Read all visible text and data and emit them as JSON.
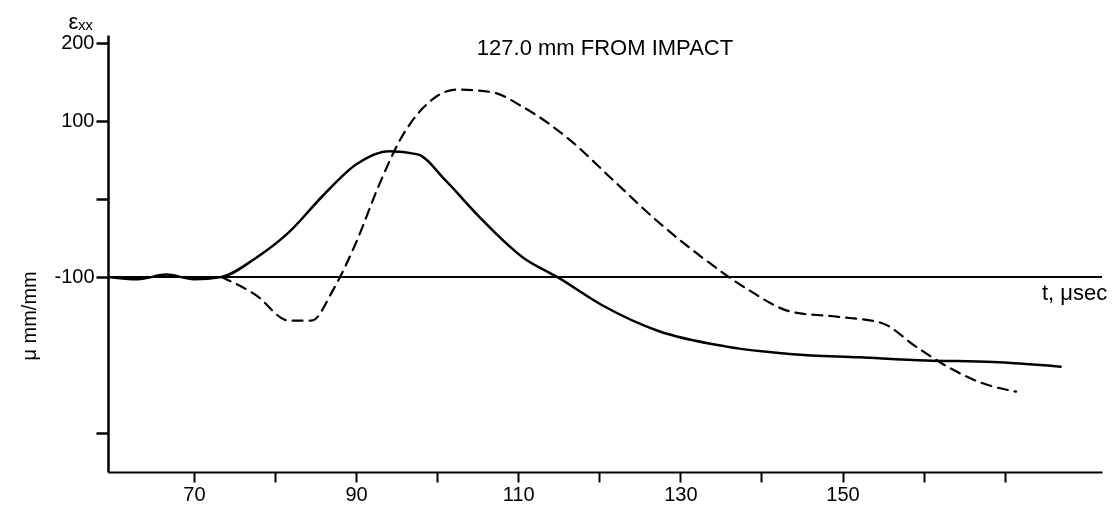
{
  "chart_data": {
    "type": "line",
    "title": "127.0 mm FROM IMPACT",
    "xlabel": "t, μsec",
    "ylabel": "εₓₓ",
    "annotations": [
      "μ mm/mm"
    ],
    "xlim": [
      59.4,
      182
    ],
    "xticks": [
      70,
      {
        "value": 80,
        "label": null
      },
      90,
      {
        "value": 100,
        "label": null
      },
      110,
      {
        "value": 120,
        "label": null
      },
      130,
      {
        "value": 140,
        "label": null
      },
      150,
      {
        "value": 160,
        "label": null
      },
      {
        "value": 170,
        "label": null
      }
    ],
    "ylim": [
      -350,
      210
    ],
    "yticks": [
      200,
      100,
      {
        "value": 0,
        "label": null
      },
      -100,
      {
        "value": -300,
        "label": null
      }
    ],
    "grid": false,
    "ref_lines": [
      {
        "axis": "y",
        "value": -100,
        "color": "#000000"
      }
    ],
    "series": [
      {
        "color": "#000000",
        "line_style": "solid",
        "x": [
          59.4,
          63.1,
          66.6,
          70,
          73.4,
          77.6,
          81.7,
          85.9,
          90,
          94.1,
          97.6,
          101,
          105.2,
          110.7,
          114.8,
          120.3,
          127.2,
          135.5,
          143.8,
          152.1,
          160.3,
          168.6,
          176.9
        ],
        "values": [
          -100,
          -103,
          -97,
          -103,
          -100,
          -76,
          -43,
          4,
          44,
          61,
          57,
          24,
          -23,
          -76,
          -100,
          -136,
          -169,
          -189,
          -199,
          -203,
          -207,
          -209,
          -215
        ]
      },
      {
        "color": "#000000",
        "line_style": "dashed",
        "x": [
          73.4,
          77.6,
          81.7,
          84.5,
          87.2,
          90,
          92.8,
          95.5,
          98.3,
          102.4,
          106.6,
          110.7,
          116.2,
          121.7,
          127.2,
          132.8,
          138.3,
          143.8,
          149.3,
          154.8,
          159,
          163.1,
          167.2,
          171.4
        ],
        "values": [
          -100,
          -123,
          -156,
          -156,
          -116,
          -56,
          17,
          77,
          117,
          140,
          137,
          117,
          77,
          24,
          -29,
          -76,
          -116,
          -145,
          -151,
          -159,
          -189,
          -216,
          -236,
          -247
        ]
      }
    ]
  }
}
